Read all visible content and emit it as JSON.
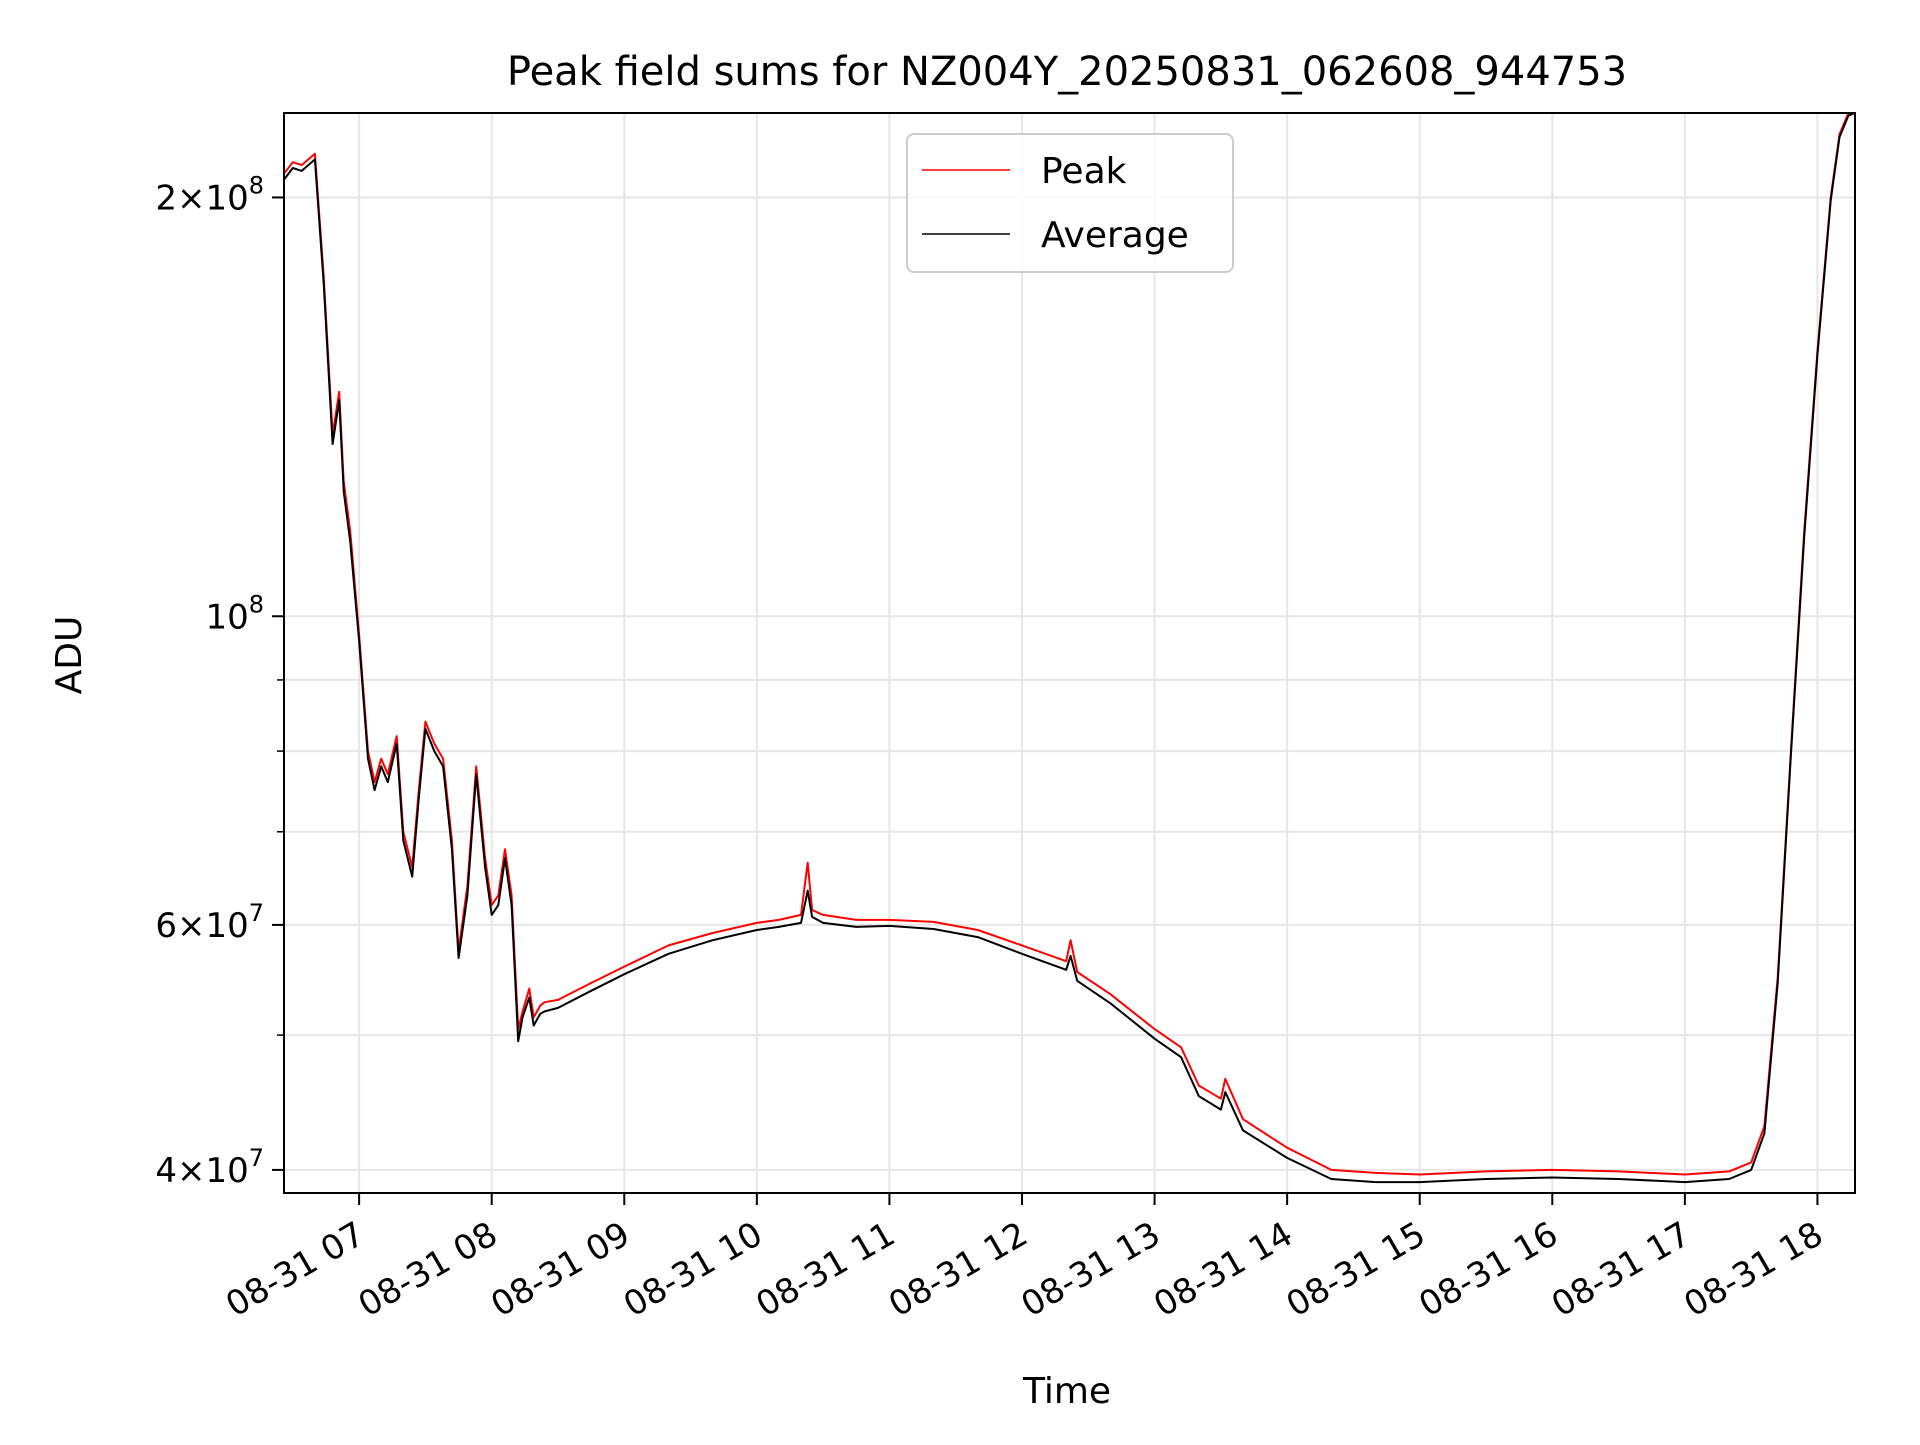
{
  "chart_data": {
    "type": "line",
    "title": "Peak field sums for NZ004Y_20250831_062608_944753",
    "xlabel": "Time",
    "ylabel": "ADU",
    "y_scale": "log",
    "grid": true,
    "legend_position": "top-center",
    "xlim": [
      "2025-08-31 06:26",
      "2025-08-31 18:17"
    ],
    "ylim": [
      38500000,
      230000000
    ],
    "x_ticks": [
      "2025-08-31 07:00",
      "2025-08-31 08:00",
      "2025-08-31 09:00",
      "2025-08-31 10:00",
      "2025-08-31 11:00",
      "2025-08-31 12:00",
      "2025-08-31 13:00",
      "2025-08-31 14:00",
      "2025-08-31 15:00",
      "2025-08-31 16:00",
      "2025-08-31 17:00",
      "2025-08-31 18:00"
    ],
    "x_tick_labels": [
      "08-31 07",
      "08-31 08",
      "08-31 09",
      "08-31 10",
      "08-31 11",
      "08-31 12",
      "08-31 13",
      "08-31 14",
      "08-31 15",
      "08-31 16",
      "08-31 17",
      "08-31 18"
    ],
    "y_major_ticks": [
      {
        "value": 40000000,
        "mantissa": "4",
        "exponent": "7"
      },
      {
        "value": 60000000,
        "mantissa": "6",
        "exponent": "7"
      },
      {
        "value": 100000000,
        "mantissa": "",
        "exponent": "8"
      },
      {
        "value": 200000000,
        "mantissa": "2",
        "exponent": "8"
      }
    ],
    "y_minor_ticks": [
      50000000,
      70000000,
      80000000,
      90000000
    ],
    "series": [
      {
        "name": "Peak",
        "color": "#ff0000",
        "x": [
          "2025-08-31 06:26",
          "2025-08-31 06:30",
          "2025-08-31 06:34",
          "2025-08-31 06:40",
          "2025-08-31 06:44",
          "2025-08-31 06:48",
          "2025-08-31 06:51",
          "2025-08-31 06:53",
          "2025-08-31 06:56",
          "2025-08-31 07:00",
          "2025-08-31 07:04",
          "2025-08-31 07:07",
          "2025-08-31 07:10",
          "2025-08-31 07:13",
          "2025-08-31 07:17",
          "2025-08-31 07:20",
          "2025-08-31 07:24",
          "2025-08-31 07:27",
          "2025-08-31 07:30",
          "2025-08-31 07:34",
          "2025-08-31 07:38",
          "2025-08-31 07:42",
          "2025-08-31 07:45",
          "2025-08-31 07:49",
          "2025-08-31 07:53",
          "2025-08-31 07:57",
          "2025-08-31 08:00",
          "2025-08-31 08:03",
          "2025-08-31 08:06",
          "2025-08-31 08:09",
          "2025-08-31 08:12",
          "2025-08-31 08:14",
          "2025-08-31 08:17",
          "2025-08-31 08:19",
          "2025-08-31 08:22",
          "2025-08-31 08:24",
          "2025-08-31 08:30",
          "2025-08-31 08:45",
          "2025-08-31 09:00",
          "2025-08-31 09:20",
          "2025-08-31 09:40",
          "2025-08-31 10:00",
          "2025-08-31 10:10",
          "2025-08-31 10:20",
          "2025-08-31 10:23",
          "2025-08-31 10:25",
          "2025-08-31 10:30",
          "2025-08-31 10:45",
          "2025-08-31 11:00",
          "2025-08-31 11:20",
          "2025-08-31 11:40",
          "2025-08-31 12:00",
          "2025-08-31 12:20",
          "2025-08-31 12:22",
          "2025-08-31 12:25",
          "2025-08-31 12:40",
          "2025-08-31 13:00",
          "2025-08-31 13:12",
          "2025-08-31 13:20",
          "2025-08-31 13:30",
          "2025-08-31 13:32",
          "2025-08-31 13:40",
          "2025-08-31 14:00",
          "2025-08-31 14:20",
          "2025-08-31 14:40",
          "2025-08-31 15:00",
          "2025-08-31 15:30",
          "2025-08-31 16:00",
          "2025-08-31 16:30",
          "2025-08-31 17:00",
          "2025-08-31 17:20",
          "2025-08-31 17:30",
          "2025-08-31 17:36",
          "2025-08-31 17:42",
          "2025-08-31 17:48",
          "2025-08-31 17:54",
          "2025-08-31 18:00",
          "2025-08-31 18:06",
          "2025-08-31 18:10",
          "2025-08-31 18:14",
          "2025-08-31 18:17"
        ],
        "values": [
          208000000,
          212000000,
          211000000,
          215000000,
          175000000,
          135000000,
          145000000,
          125000000,
          115000000,
          97000000,
          80000000,
          76000000,
          79000000,
          77000000,
          82000000,
          70000000,
          66000000,
          75000000,
          84000000,
          81000000,
          79000000,
          69000000,
          57500000,
          64000000,
          78000000,
          67000000,
          62000000,
          63000000,
          68000000,
          63000000,
          50500000,
          52000000,
          54000000,
          51500000,
          52500000,
          52800000,
          53000000,
          54500000,
          56000000,
          58000000,
          59200000,
          60200000,
          60500000,
          61000000,
          66500000,
          61500000,
          61000000,
          60500000,
          60500000,
          60300000,
          59500000,
          58000000,
          56500000,
          58500000,
          55500000,
          53500000,
          50500000,
          49000000,
          46000000,
          45000000,
          46500000,
          43500000,
          41500000,
          40000000,
          39800000,
          39700000,
          39900000,
          40000000,
          39900000,
          39700000,
          39900000,
          40500000,
          43000000,
          55000000,
          80000000,
          115000000,
          155000000,
          200000000,
          222000000,
          230000000,
          230000000
        ]
      },
      {
        "name": "Average",
        "color": "#000000",
        "x": [
          "2025-08-31 06:26",
          "2025-08-31 06:30",
          "2025-08-31 06:34",
          "2025-08-31 06:40",
          "2025-08-31 06:44",
          "2025-08-31 06:48",
          "2025-08-31 06:51",
          "2025-08-31 06:53",
          "2025-08-31 06:56",
          "2025-08-31 07:00",
          "2025-08-31 07:04",
          "2025-08-31 07:07",
          "2025-08-31 07:10",
          "2025-08-31 07:13",
          "2025-08-31 07:17",
          "2025-08-31 07:20",
          "2025-08-31 07:24",
          "2025-08-31 07:27",
          "2025-08-31 07:30",
          "2025-08-31 07:34",
          "2025-08-31 07:38",
          "2025-08-31 07:42",
          "2025-08-31 07:45",
          "2025-08-31 07:49",
          "2025-08-31 07:53",
          "2025-08-31 07:57",
          "2025-08-31 08:00",
          "2025-08-31 08:03",
          "2025-08-31 08:06",
          "2025-08-31 08:09",
          "2025-08-31 08:12",
          "2025-08-31 08:14",
          "2025-08-31 08:17",
          "2025-08-31 08:19",
          "2025-08-31 08:22",
          "2025-08-31 08:24",
          "2025-08-31 08:30",
          "2025-08-31 08:45",
          "2025-08-31 09:00",
          "2025-08-31 09:20",
          "2025-08-31 09:40",
          "2025-08-31 10:00",
          "2025-08-31 10:10",
          "2025-08-31 10:20",
          "2025-08-31 10:23",
          "2025-08-31 10:25",
          "2025-08-31 10:30",
          "2025-08-31 10:45",
          "2025-08-31 11:00",
          "2025-08-31 11:20",
          "2025-08-31 11:40",
          "2025-08-31 12:00",
          "2025-08-31 12:20",
          "2025-08-31 12:22",
          "2025-08-31 12:25",
          "2025-08-31 12:40",
          "2025-08-31 13:00",
          "2025-08-31 13:12",
          "2025-08-31 13:20",
          "2025-08-31 13:30",
          "2025-08-31 13:32",
          "2025-08-31 13:40",
          "2025-08-31 14:00",
          "2025-08-31 14:20",
          "2025-08-31 14:40",
          "2025-08-31 15:00",
          "2025-08-31 15:30",
          "2025-08-31 16:00",
          "2025-08-31 16:30",
          "2025-08-31 17:00",
          "2025-08-31 17:20",
          "2025-08-31 17:30",
          "2025-08-31 17:36",
          "2025-08-31 17:42",
          "2025-08-31 17:48",
          "2025-08-31 17:54",
          "2025-08-31 18:00",
          "2025-08-31 18:06",
          "2025-08-31 18:10",
          "2025-08-31 18:14",
          "2025-08-31 18:17"
        ],
        "values": [
          206000000,
          210000000,
          209000000,
          213000000,
          173000000,
          133000000,
          143000000,
          123000000,
          113000000,
          96000000,
          79000000,
          75000000,
          78000000,
          76000000,
          81000000,
          69000000,
          65000000,
          74000000,
          83000000,
          80000000,
          78000000,
          68000000,
          56800000,
          63000000,
          77000000,
          66000000,
          61000000,
          62000000,
          67000000,
          62000000,
          49500000,
          51500000,
          53200000,
          50800000,
          51800000,
          52000000,
          52300000,
          53800000,
          55300000,
          57200000,
          58500000,
          59500000,
          59800000,
          60200000,
          63500000,
          60800000,
          60200000,
          59800000,
          59900000,
          59600000,
          58800000,
          57200000,
          55700000,
          57000000,
          54700000,
          52700000,
          49700000,
          48200000,
          45200000,
          44200000,
          45500000,
          42700000,
          40800000,
          39400000,
          39200000,
          39200000,
          39400000,
          39500000,
          39400000,
          39200000,
          39400000,
          40000000,
          42500000,
          54500000,
          79500000,
          114000000,
          154000000,
          199000000,
          221000000,
          229000000,
          230000000
        ]
      }
    ]
  }
}
